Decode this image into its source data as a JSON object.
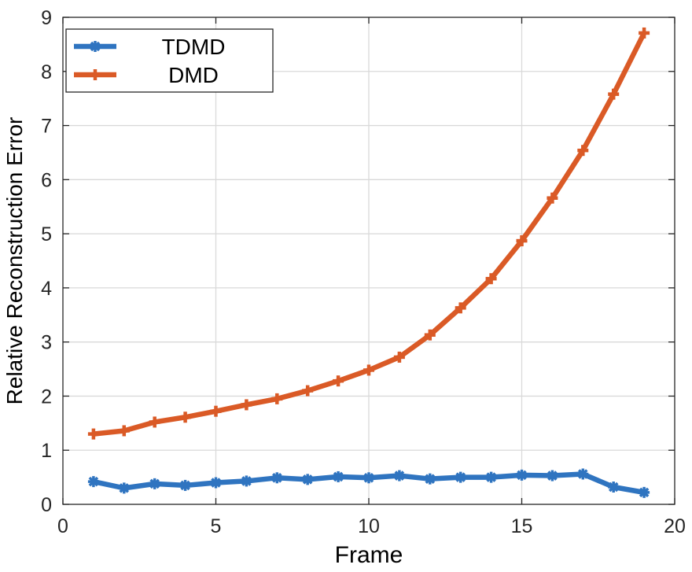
{
  "chart_data": {
    "type": "line",
    "title": "",
    "xlabel": "Frame",
    "ylabel": "Relative Reconstruction Error",
    "xlim": [
      0,
      20
    ],
    "ylim": [
      0,
      9
    ],
    "xticks": [
      0,
      5,
      10,
      15,
      20
    ],
    "yticks": [
      0,
      1,
      2,
      3,
      4,
      5,
      6,
      7,
      8,
      9
    ],
    "grid": true,
    "legend_position": "top-left",
    "series": [
      {
        "name": "TDMD",
        "color": "#2f74c0",
        "marker": "asterisk",
        "x": [
          1,
          2,
          3,
          4,
          5,
          6,
          7,
          8,
          9,
          10,
          11,
          12,
          13,
          14,
          15,
          16,
          17,
          18,
          19
        ],
        "y": [
          0.42,
          0.3,
          0.38,
          0.35,
          0.4,
          0.43,
          0.49,
          0.46,
          0.51,
          0.49,
          0.53,
          0.47,
          0.5,
          0.5,
          0.54,
          0.53,
          0.56,
          0.32,
          0.22
        ]
      },
      {
        "name": "DMD",
        "color": "#da5a26",
        "marker": "plus",
        "x": [
          1,
          2,
          3,
          4,
          5,
          6,
          7,
          8,
          9,
          10,
          11,
          12,
          13,
          14,
          15,
          16,
          17,
          18,
          19
        ],
        "y": [
          1.3,
          1.36,
          1.52,
          1.61,
          1.72,
          1.84,
          1.95,
          2.1,
          2.28,
          2.48,
          2.72,
          3.13,
          3.63,
          4.17,
          4.87,
          5.66,
          6.54,
          7.58,
          8.71
        ]
      }
    ]
  }
}
